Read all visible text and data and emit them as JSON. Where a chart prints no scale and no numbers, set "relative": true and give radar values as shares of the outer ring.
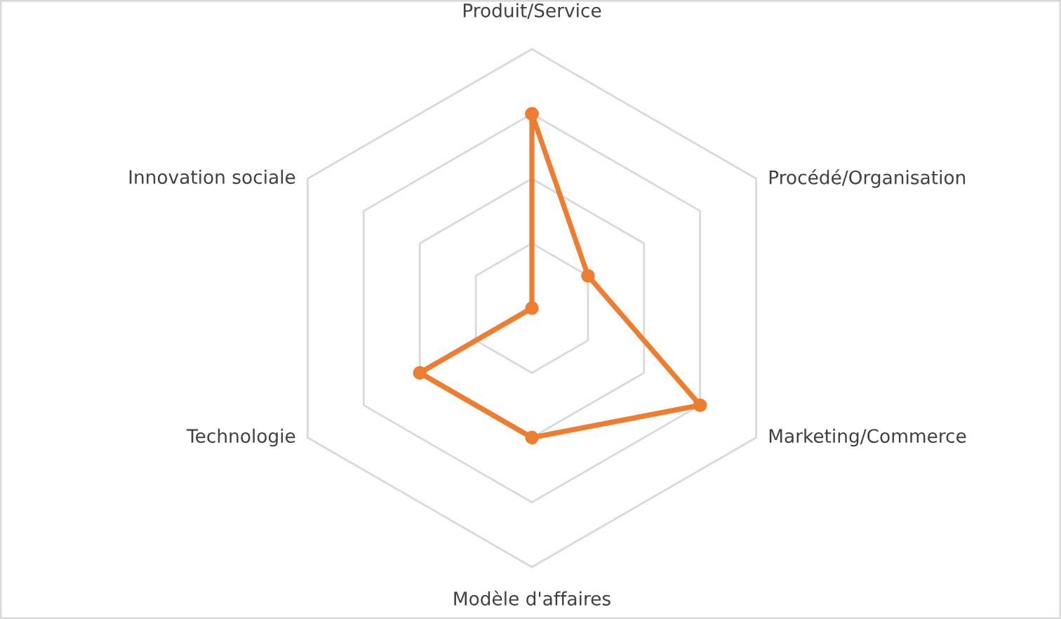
{
  "chart_data": {
    "type": "radar",
    "relative": true,
    "categories": [
      "Produit/Service",
      "Procédé/Organisation",
      "Marketing/Commerce",
      "Modèle d'affaires",
      "Technologie",
      "Innovation sociale"
    ],
    "series": [
      {
        "color": "#ed7d31",
        "values": [
          0.75,
          0.25,
          0.75,
          0.5,
          0.5,
          0
        ]
      }
    ],
    "grid": true,
    "marker": "circle",
    "line_style": "solid"
  }
}
